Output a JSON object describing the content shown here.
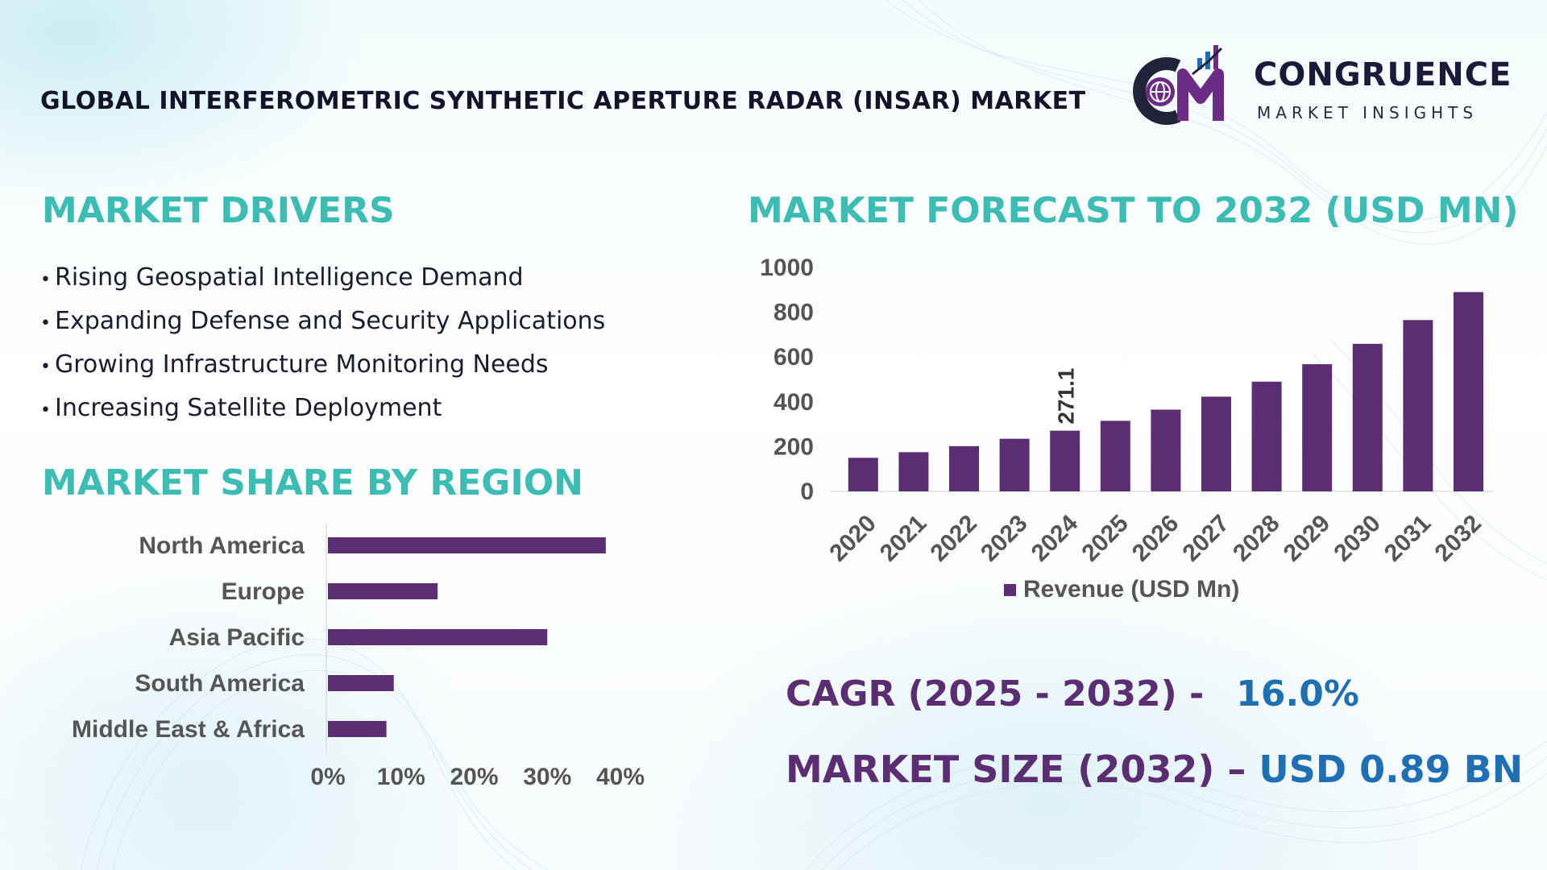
{
  "header": {
    "title": "GLOBAL INTERFEROMETRIC SYNTHETIC APERTURE RADAR (INSAR) MARKET",
    "logo_name": "CONGRUENCE",
    "logo_sub": "MARKET INSIGHTS"
  },
  "drivers": {
    "heading": "MARKET DRIVERS",
    "bullet": "•",
    "items": [
      "Rising Geospatial Intelligence Demand",
      "Expanding Defense and Security Applications",
      "Growing Infrastructure Monitoring Needs",
      "Increasing Satellite Deployment"
    ]
  },
  "region": {
    "heading": "MARKET SHARE BY REGION"
  },
  "forecast": {
    "heading": "MARKET FORECAST TO 2032 (USD MN)"
  },
  "stats": {
    "cagr_label": "CAGR (2025 - 2032) -",
    "cagr_value": "16.0%",
    "size_label": "MARKET SIZE (2032) –",
    "size_value": "USD 0.89 BN"
  },
  "colors": {
    "bar": "#5b2d72",
    "heading": "#3cbdb3",
    "stat_label": "#5b2d72",
    "stat_value": "#1f6fb4",
    "axis_text": "#555555"
  },
  "chart_data": [
    {
      "type": "bar",
      "orientation": "horizontal",
      "categories": [
        "North America",
        "Europe",
        "Asia Pacific",
        "South America",
        "Middle East & Africa"
      ],
      "values": [
        38,
        15,
        30,
        9,
        8
      ],
      "xlim": [
        0,
        40
      ],
      "xticks": [
        "0%",
        "10%",
        "20%",
        "30%",
        "40%"
      ],
      "grid": false
    },
    {
      "type": "bar",
      "categories": [
        "2020",
        "2021",
        "2022",
        "2023",
        "2024",
        "2025",
        "2026",
        "2027",
        "2028",
        "2029",
        "2030",
        "2031",
        "2032"
      ],
      "series": [
        {
          "name": "Revenue (USD Mn)",
          "values": [
            150,
            175,
            202,
            235,
            271.1,
            315,
            365,
            423,
            490,
            568,
            659,
            765,
            890
          ]
        }
      ],
      "data_labels": [
        {
          "category": "2024",
          "text": "271.1"
        }
      ],
      "ylim": [
        0,
        1000
      ],
      "yticks": [
        "0",
        "200",
        "400",
        "600",
        "800",
        "1000"
      ],
      "legend": "bottom",
      "grid": false
    }
  ]
}
